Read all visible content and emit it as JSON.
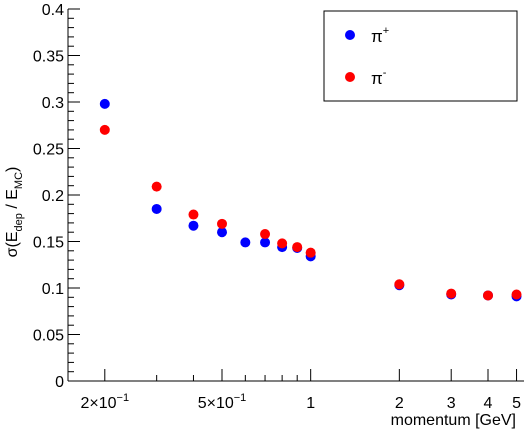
{
  "chart_data": {
    "type": "scatter",
    "x_scale": "log",
    "xlim": [
      0.15,
      5.3
    ],
    "ylim": [
      0,
      0.4
    ],
    "xlabel": "momentum [GeV]",
    "ylabel": {
      "base": "σ(E",
      "dep": "dep",
      "slash": " / E",
      "mc": "MC",
      "close": ")"
    },
    "x_ticks": [
      {
        "value": 0.2,
        "label_base": "2×10",
        "label_exp": "−1"
      },
      {
        "value": 0.5,
        "label_base": "5×10",
        "label_exp": "−1"
      },
      {
        "value": 1,
        "label": "1"
      },
      {
        "value": 2,
        "label": "2"
      },
      {
        "value": 3,
        "label": "3"
      },
      {
        "value": 4,
        "label": "4"
      },
      {
        "value": 5,
        "label": "5"
      }
    ],
    "y_ticks": [
      {
        "value": 0,
        "label": "0"
      },
      {
        "value": 0.05,
        "label": "0.05"
      },
      {
        "value": 0.1,
        "label": "0.1"
      },
      {
        "value": 0.15,
        "label": "0.15"
      },
      {
        "value": 0.2,
        "label": "0.2"
      },
      {
        "value": 0.25,
        "label": "0.25"
      },
      {
        "value": 0.3,
        "label": "0.3"
      },
      {
        "value": 0.35,
        "label": "0.35"
      },
      {
        "value": 0.4,
        "label": "0.4"
      }
    ],
    "series": [
      {
        "name_base": "π",
        "name_sup": "+",
        "color": "#0000ff",
        "x": [
          0.2,
          0.3,
          0.4,
          0.5,
          0.6,
          0.7,
          0.8,
          0.9,
          1.0,
          2.0,
          3.0,
          4.0,
          5.0
        ],
        "y": [
          0.298,
          0.185,
          0.167,
          0.16,
          0.149,
          0.149,
          0.144,
          0.143,
          0.134,
          0.103,
          0.093,
          0.092,
          0.091
        ]
      },
      {
        "name_base": "π",
        "name_sup": "-",
        "color": "#ff0000",
        "x": [
          0.2,
          0.3,
          0.4,
          0.5,
          0.7,
          0.8,
          0.9,
          1.0,
          2.0,
          3.0,
          4.0,
          5.0
        ],
        "y": [
          0.27,
          0.209,
          0.179,
          0.169,
          0.158,
          0.148,
          0.144,
          0.138,
          0.104,
          0.094,
          0.092,
          0.093
        ]
      }
    ],
    "legend_position": "top-right",
    "grid": false
  }
}
